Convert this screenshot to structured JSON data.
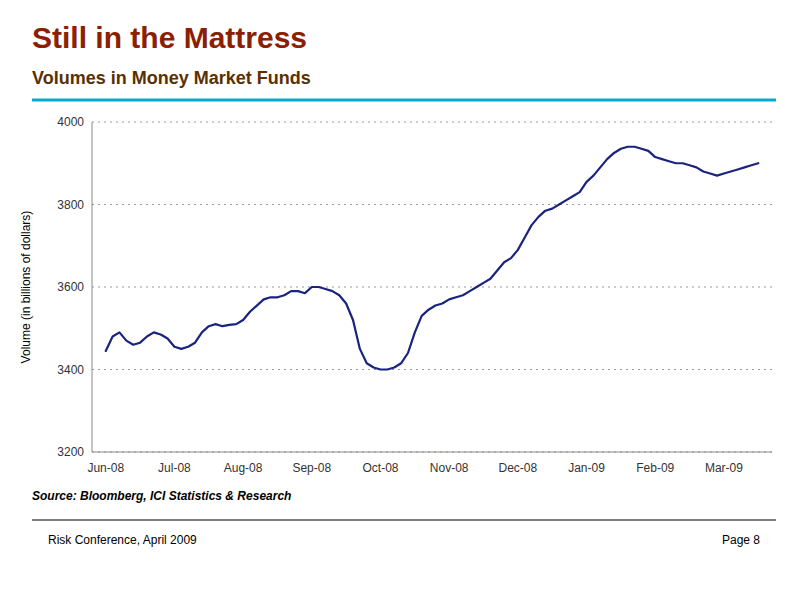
{
  "chart_data": {
    "type": "line",
    "title": "Still in the Mattress",
    "subtitle": "Volumes in Money Market Funds",
    "y_label": "Volume (in billions of dollars)",
    "annotations": [
      "Source: Bloomberg, ICI Statistics & Research",
      "Risk Conference, April 2009",
      "Page 8"
    ],
    "color": "#1A237E",
    "grid": true,
    "xlim": [
      -0.2,
      9.7
    ],
    "xticks": [
      {
        "value": 0,
        "label": "Jun-08"
      },
      {
        "value": 1,
        "label": "Jul-08"
      },
      {
        "value": 2,
        "label": "Aug-08"
      },
      {
        "value": 3,
        "label": "Sep-08"
      },
      {
        "value": 4,
        "label": "Oct-08"
      },
      {
        "value": 5,
        "label": "Nov-08"
      },
      {
        "value": 6,
        "label": "Dec-08"
      },
      {
        "value": 7,
        "label": "Jan-09"
      },
      {
        "value": 8,
        "label": "Feb-09"
      },
      {
        "value": 9,
        "label": "Mar-09"
      }
    ],
    "ylim": [
      3200,
      4000
    ],
    "yticks": [
      3200,
      3400,
      3600,
      3800,
      4000
    ],
    "x": [
      0.0,
      0.1,
      0.2,
      0.3,
      0.4,
      0.5,
      0.6,
      0.7,
      0.8,
      0.9,
      1.0,
      1.1,
      1.2,
      1.3,
      1.4,
      1.5,
      1.6,
      1.7,
      1.8,
      1.9,
      2.0,
      2.1,
      2.2,
      2.3,
      2.4,
      2.5,
      2.6,
      2.7,
      2.8,
      2.9,
      3.0,
      3.1,
      3.2,
      3.3,
      3.4,
      3.5,
      3.6,
      3.7,
      3.8,
      3.9,
      4.0,
      4.1,
      4.2,
      4.3,
      4.4,
      4.5,
      4.6,
      4.7,
      4.8,
      4.9,
      5.0,
      5.1,
      5.2,
      5.3,
      5.4,
      5.5,
      5.6,
      5.7,
      5.8,
      5.9,
      6.0,
      6.1,
      6.2,
      6.3,
      6.4,
      6.5,
      6.6,
      6.7,
      6.8,
      6.9,
      7.0,
      7.1,
      7.2,
      7.3,
      7.4,
      7.5,
      7.6,
      7.7,
      7.8,
      7.9,
      8.0,
      8.1,
      8.2,
      8.3,
      8.4,
      8.5,
      8.6,
      8.7,
      8.8,
      8.9,
      9.0,
      9.1,
      9.2,
      9.3,
      9.4,
      9.5
    ],
    "values": [
      3445,
      3480,
      3490,
      3470,
      3460,
      3465,
      3480,
      3490,
      3485,
      3475,
      3455,
      3450,
      3455,
      3465,
      3490,
      3505,
      3510,
      3505,
      3508,
      3510,
      3520,
      3540,
      3555,
      3570,
      3575,
      3575,
      3580,
      3590,
      3590,
      3585,
      3600,
      3600,
      3595,
      3590,
      3580,
      3560,
      3520,
      3450,
      3415,
      3405,
      3400,
      3400,
      3405,
      3415,
      3440,
      3490,
      3530,
      3545,
      3555,
      3560,
      3570,
      3575,
      3580,
      3590,
      3600,
      3610,
      3620,
      3640,
      3660,
      3670,
      3690,
      3720,
      3750,
      3770,
      3785,
      3790,
      3800,
      3810,
      3820,
      3830,
      3855,
      3870,
      3890,
      3910,
      3925,
      3935,
      3940,
      3940,
      3935,
      3930,
      3915,
      3910,
      3905,
      3900,
      3900,
      3895,
      3890,
      3880,
      3875,
      3870,
      3875,
      3880,
      3885,
      3890,
      3895,
      3900
    ]
  }
}
